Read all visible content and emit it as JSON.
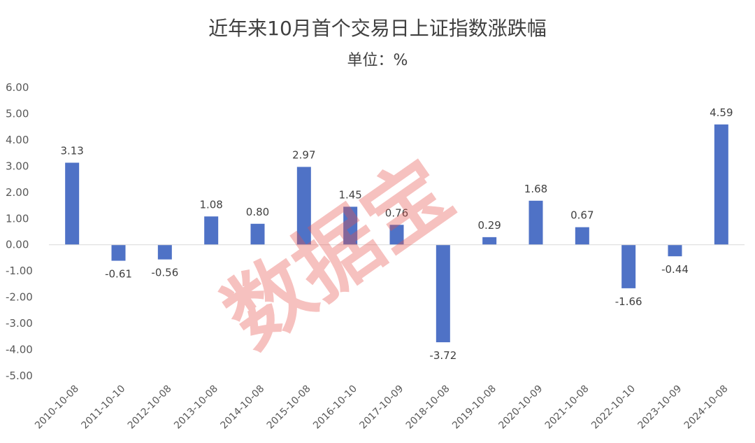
{
  "chart_data": {
    "type": "bar",
    "title": "近年来10月首个交易日上证指数涨跌幅",
    "subtitle": "单位：%",
    "categories": [
      "2010-10-08",
      "2011-10-10",
      "2012-10-08",
      "2013-10-08",
      "2014-10-08",
      "2015-10-08",
      "2016-10-10",
      "2017-10-09",
      "2018-10-08",
      "2019-10-08",
      "2020-10-09",
      "2021-10-08",
      "2022-10-10",
      "2023-10-09",
      "2024-10-08"
    ],
    "values": [
      3.13,
      -0.61,
      -0.56,
      1.08,
      0.8,
      2.97,
      1.45,
      0.76,
      -3.72,
      0.29,
      1.68,
      0.67,
      -1.66,
      -0.44,
      4.59
    ],
    "ylim": [
      -5,
      6
    ],
    "yticks": [
      "6.00",
      "5.00",
      "4.00",
      "3.00",
      "2.00",
      "1.00",
      "0.00",
      "-1.00",
      "-2.00",
      "-3.00",
      "-4.00",
      "-5.00"
    ],
    "grid": false,
    "bar_color": "#4f72c6",
    "xlabel": "",
    "ylabel": "",
    "watermark": "数据宝",
    "watermark_color": "#e8504a"
  }
}
